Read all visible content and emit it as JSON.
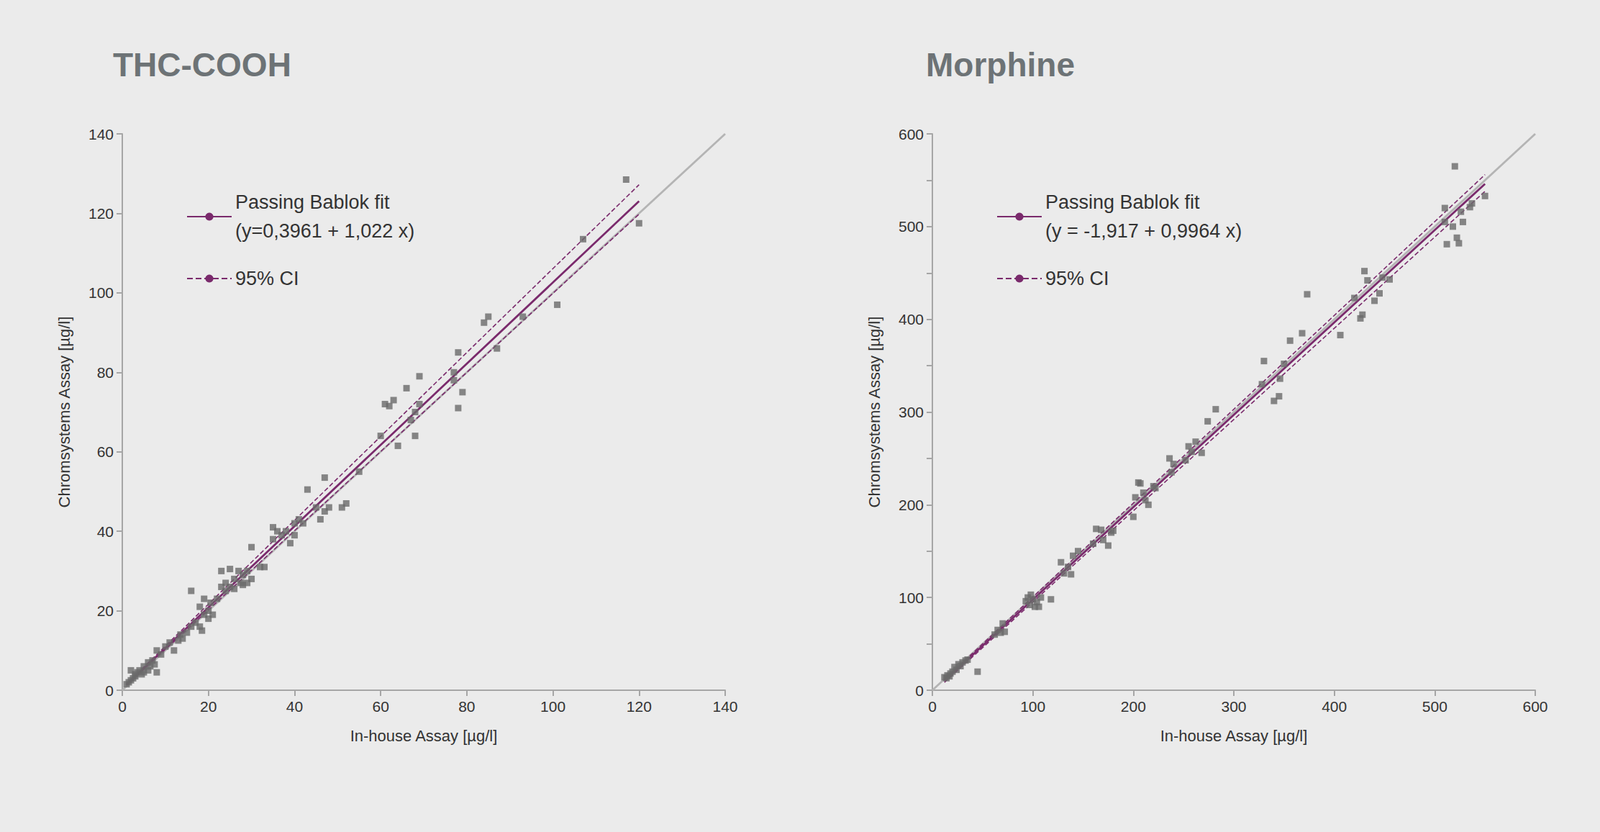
{
  "chart_data": [
    {
      "type": "scatter",
      "title": "THC-COOH",
      "x_label": "In-house Assay [µg/l]",
      "y_label": "Chromsystems Assay [µg/l]",
      "xlim": [
        0,
        140
      ],
      "ylim": [
        0,
        140
      ],
      "xticks": [
        0,
        20,
        40,
        60,
        80,
        100,
        120,
        140
      ],
      "yticks": [
        0,
        20,
        40,
        60,
        80,
        100,
        120,
        140
      ],
      "grid": false,
      "legend": "upper left",
      "series": [
        {
          "type": "line",
          "color": "#b4b4b4",
          "line_style": "solid",
          "x": [
            0,
            140
          ],
          "values": [
            0,
            140
          ]
        },
        {
          "name": "Passing Bablok fit\n(y=0,3961 + 1,022 x)",
          "type": "line",
          "color": "#7a2a6c",
          "line_style": "solid",
          "x": [
            1,
            120
          ],
          "values": [
            1.42,
            123.06
          ]
        },
        {
          "name": "95% CI",
          "type": "line",
          "color": "#7a2a6c",
          "line_style": "dashed",
          "x": [
            1,
            120
          ],
          "values": [
            1.6,
            127.2
          ]
        },
        {
          "type": "line",
          "color": "#7a2a6c",
          "line_style": "dashed",
          "x": [
            1,
            120
          ],
          "values": [
            1.3,
            119.8
          ]
        },
        {
          "type": "scatter",
          "color": "#6a6a6a",
          "marker": "square",
          "x": [
            1,
            1.5,
            2,
            2.5,
            3,
            2,
            3,
            3.5,
            4,
            4.5,
            5,
            5,
            6,
            6,
            6.5,
            7,
            7.5,
            8,
            8,
            9,
            10,
            11,
            12,
            13,
            13.5,
            14,
            15,
            16,
            16,
            17,
            18,
            18,
            18.5,
            19,
            19,
            20,
            20,
            20.5,
            21,
            22,
            23,
            23,
            24,
            24,
            25,
            25,
            26,
            26,
            27,
            27.5,
            28,
            28,
            29,
            29,
            30,
            30,
            32,
            33,
            35,
            35,
            36,
            37,
            38,
            39,
            40,
            40,
            41,
            42,
            43,
            45,
            46,
            47,
            47,
            48,
            51,
            52,
            55,
            60,
            61,
            62,
            63,
            64,
            66,
            67,
            68,
            68,
            69,
            69,
            77,
            77,
            78,
            78,
            79,
            84,
            85,
            87,
            93,
            101,
            107,
            117,
            120
          ],
          "values": [
            1.5,
            2,
            2.5,
            3,
            3.5,
            5,
            4,
            4.5,
            5,
            4,
            4.5,
            6,
            5,
            7,
            6,
            7.5,
            6.5,
            4.5,
            10,
            9,
            11,
            12,
            10,
            12.5,
            14,
            13,
            14.5,
            16,
            25,
            17,
            16,
            21,
            15,
            19,
            23,
            18,
            20,
            22,
            19,
            23,
            26,
            30,
            25,
            27,
            26,
            30.5,
            25.5,
            28,
            30,
            27,
            26.5,
            29,
            27,
            30,
            28,
            36,
            31,
            31,
            38,
            41,
            40,
            39,
            40,
            37,
            42,
            39,
            43,
            42,
            50.5,
            46,
            43,
            45,
            53.5,
            46,
            46,
            47,
            55,
            64,
            72,
            71.5,
            73,
            61.5,
            76,
            68,
            64,
            70,
            72,
            79,
            78,
            80,
            71,
            85,
            75,
            92.5,
            94,
            86,
            94,
            97,
            113.5,
            128.5,
            117.5
          ]
        }
      ]
    },
    {
      "type": "scatter",
      "title": "Morphine",
      "x_label": "In-house Assay [µg/l]",
      "y_label": "Chromsystems Assay [µg/l]",
      "xlim": [
        0,
        600
      ],
      "ylim": [
        0,
        600
      ],
      "xticks": [
        0,
        100,
        200,
        300,
        400,
        500,
        600
      ],
      "yticks": [
        0,
        100,
        200,
        300,
        400,
        500,
        600
      ],
      "grid": false,
      "legend": "upper left",
      "series": [
        {
          "type": "line",
          "color": "#b4b4b4",
          "line_style": "solid",
          "x": [
            0,
            600
          ],
          "values": [
            0,
            600
          ]
        },
        {
          "name": "Passing Bablok fit\n(y = -1,917 + 0,9964 x)",
          "type": "line",
          "color": "#7a2a6c",
          "line_style": "solid",
          "x": [
            12,
            550
          ],
          "values": [
            10.04,
            546.1
          ]
        },
        {
          "name": "95% CI",
          "type": "line",
          "color": "#7a2a6c",
          "line_style": "dashed",
          "x": [
            12,
            550
          ],
          "values": [
            11.5,
            556
          ]
        },
        {
          "type": "line",
          "color": "#7a2a6c",
          "line_style": "dashed",
          "x": [
            12,
            550
          ],
          "values": [
            8.5,
            538
          ]
        },
        {
          "type": "scatter",
          "color": "#6a6a6a",
          "marker": "square",
          "x": [
            12,
            14,
            15,
            17,
            18,
            20,
            22,
            24,
            26,
            28,
            30,
            33,
            35,
            45,
            62,
            65,
            68,
            70,
            72,
            93,
            95,
            97,
            98,
            100,
            102,
            104,
            106,
            108,
            118,
            128,
            131,
            135,
            138,
            140,
            145,
            160,
            163,
            168,
            170,
            175,
            178,
            180,
            200,
            202,
            205,
            207,
            210,
            212,
            215,
            220,
            222,
            236,
            238,
            240,
            252,
            255,
            258,
            262,
            268,
            274,
            282,
            328,
            330,
            340,
            345,
            346,
            350,
            356,
            368,
            373,
            406,
            420,
            426,
            428,
            430,
            433,
            440,
            445,
            448,
            455,
            510,
            510,
            512,
            518,
            520,
            522,
            524,
            526,
            528,
            535,
            537,
            550
          ],
          "values": [
            14,
            13,
            16,
            15,
            18,
            20,
            25,
            22,
            28,
            26,
            30,
            32,
            33,
            20,
            60,
            65,
            62,
            72,
            63,
            96,
            100,
            92,
            103,
            98,
            90,
            95,
            90,
            100,
            98,
            138,
            126,
            133,
            125,
            145,
            150,
            158,
            174,
            173,
            162,
            156,
            170,
            172,
            187,
            208,
            224,
            223,
            213,
            205,
            200,
            220,
            218,
            250,
            235,
            244,
            248,
            263,
            257,
            268,
            256,
            290,
            303,
            330,
            355,
            312,
            317,
            336,
            352,
            377,
            385,
            427,
            383,
            423,
            401,
            405,
            452,
            442,
            420,
            428,
            445,
            443,
            505,
            520,
            481,
            500,
            565,
            488,
            482,
            516,
            505,
            521,
            525,
            533
          ]
        }
      ]
    }
  ]
}
